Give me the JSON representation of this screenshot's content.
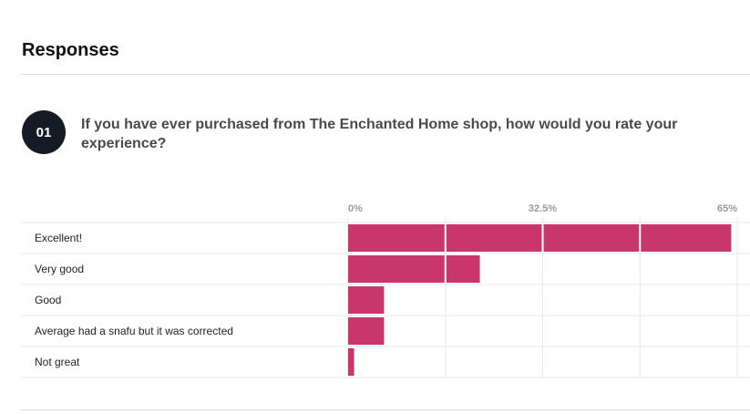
{
  "responses": {
    "title": "Responses"
  },
  "question": {
    "number": "01",
    "text": "If you have ever purchased from The Enchanted Home shop, how would you rate your experience?"
  },
  "colors": {
    "bar": "#c8366b",
    "grid": "#e9e9e9",
    "tick": "#9a9a9a",
    "badge": "#141b24"
  },
  "chart_data": {
    "type": "bar",
    "orientation": "horizontal",
    "categories": [
      "Excellent!",
      "Very good",
      "Good",
      "Average had a snafu but it was corrected",
      "Not great"
    ],
    "values": [
      64,
      22,
      6,
      6,
      1
    ],
    "unit": "%",
    "xlim": [
      0,
      65
    ],
    "ticks": [
      "0%",
      "32.5%",
      "65%"
    ],
    "grid": true,
    "segmented_by_response": true
  }
}
